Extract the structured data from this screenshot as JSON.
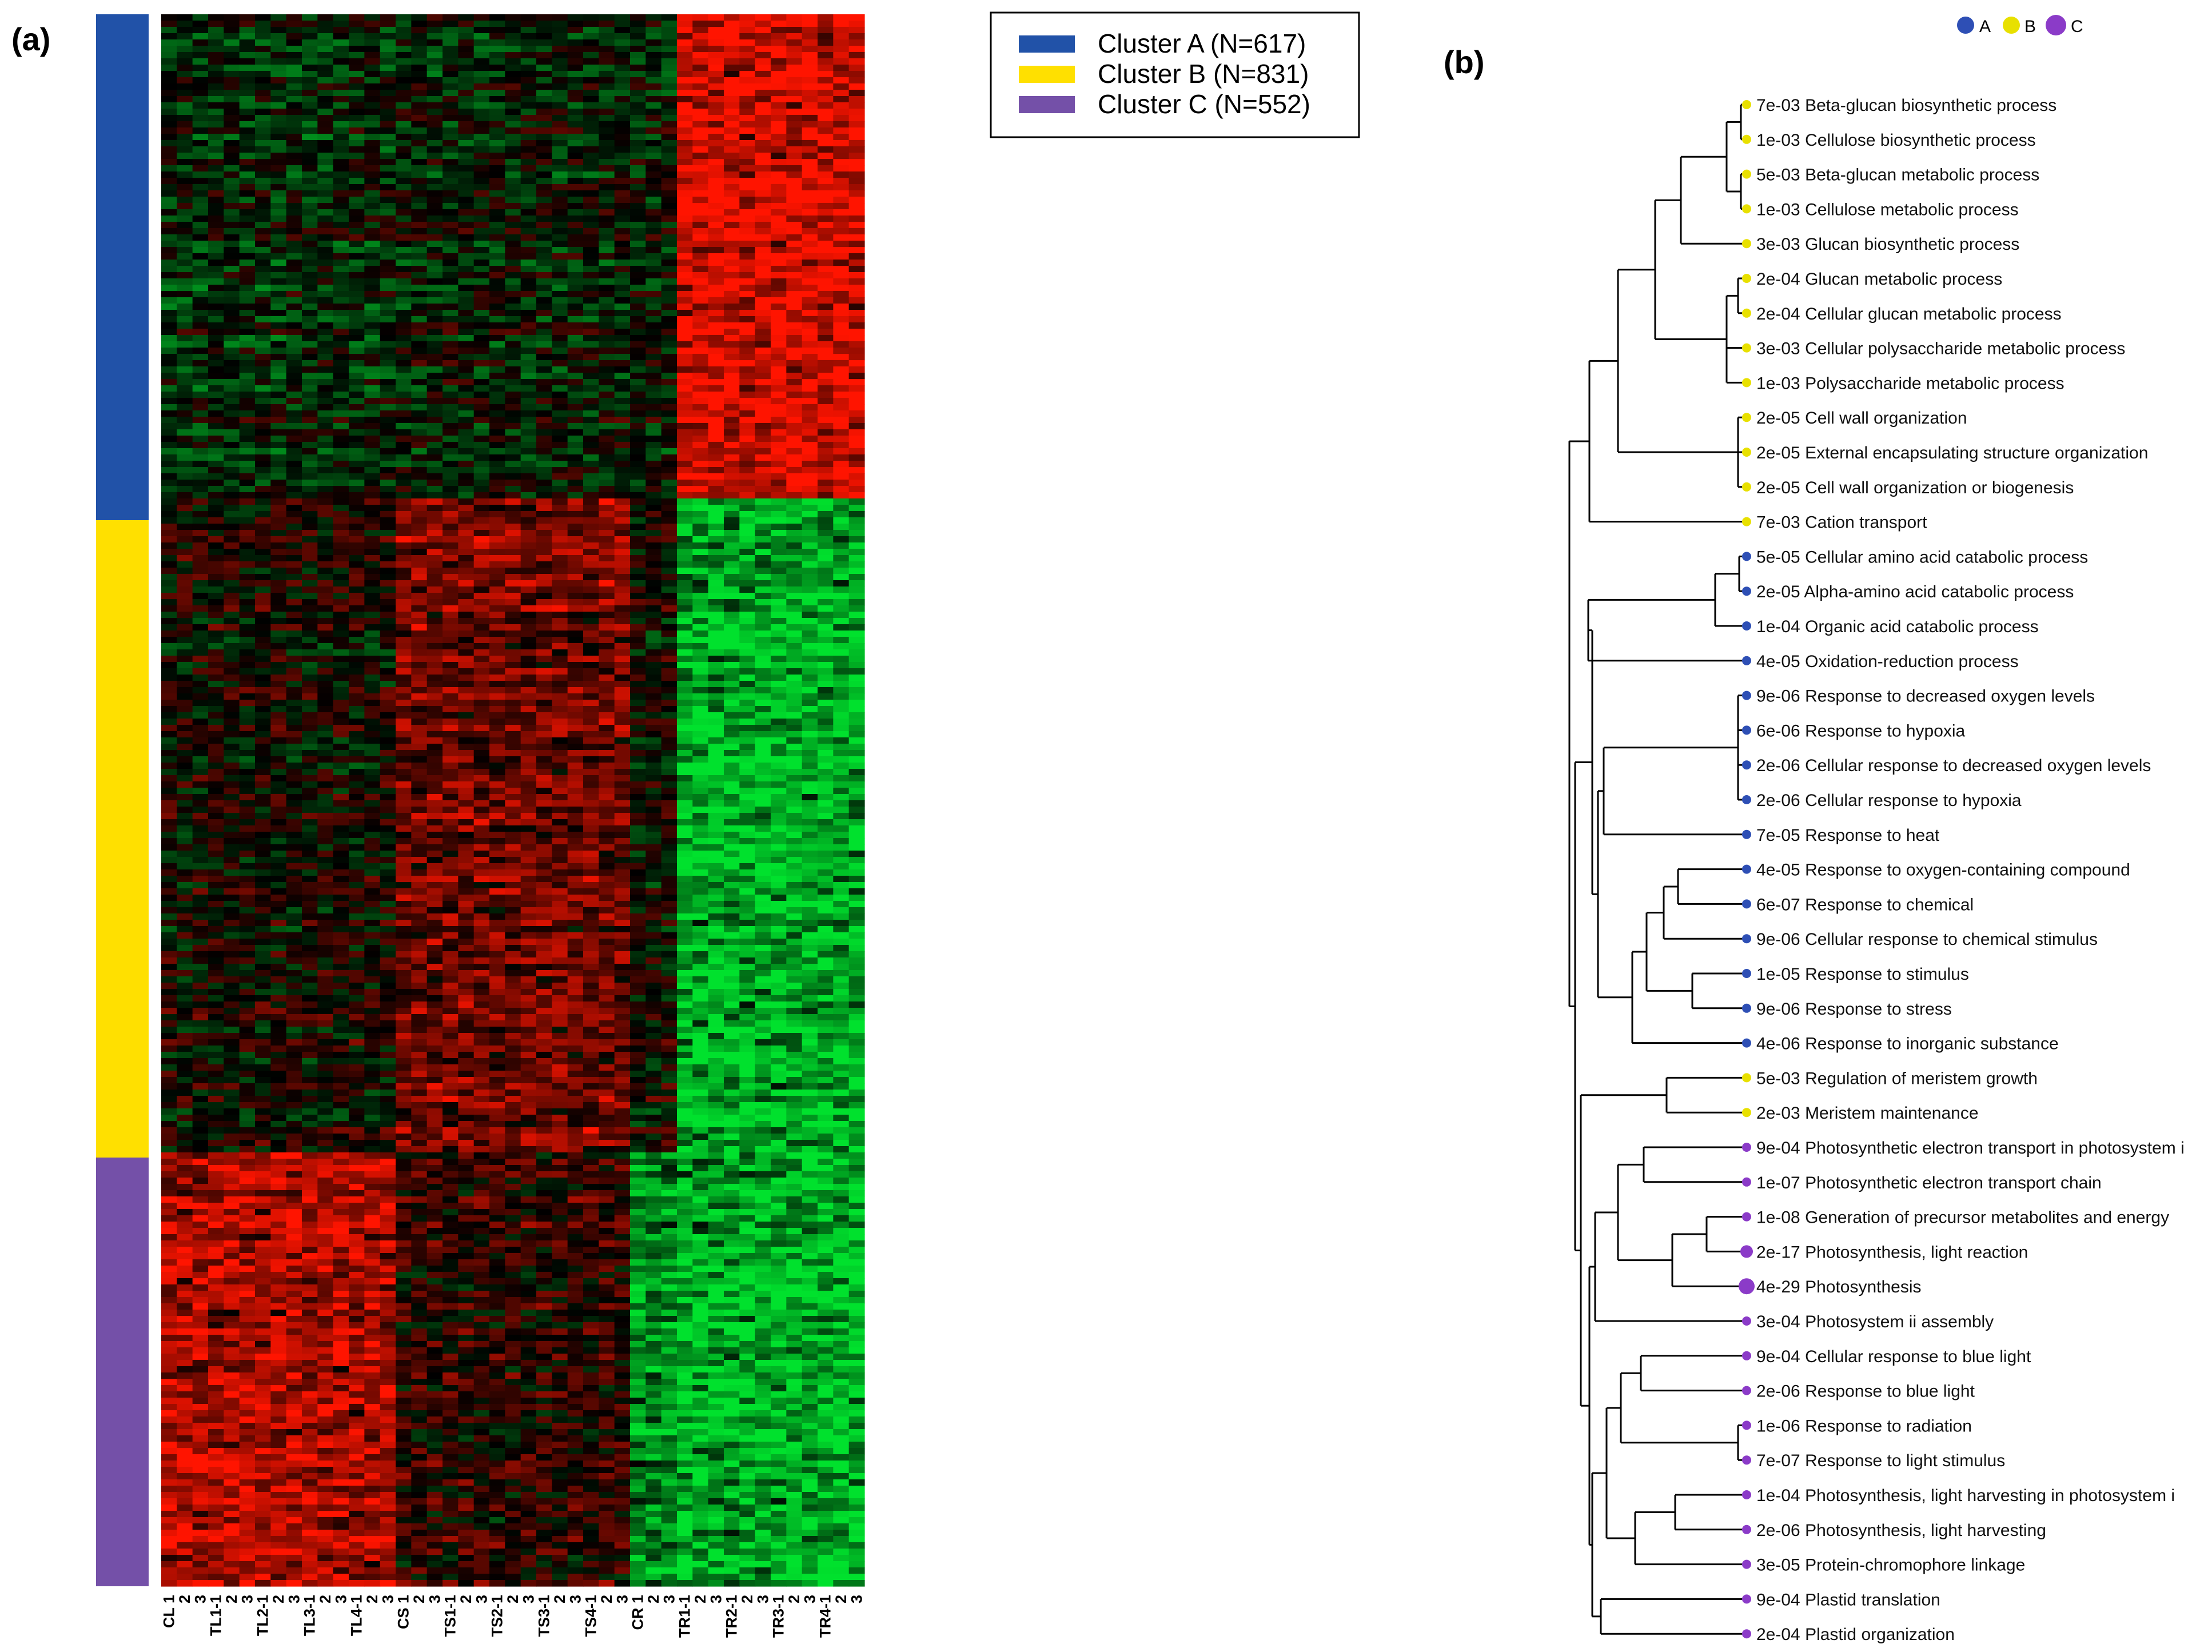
{
  "panels": {
    "a_label": "(a)",
    "b_label": "(b)"
  },
  "legend": {
    "items": [
      {
        "label": "Cluster A (N=617)",
        "color": "#2152a8"
      },
      {
        "label": "Cluster B (N=831)",
        "color": "#ffe000"
      },
      {
        "label": "Cluster C (N=552)",
        "color": "#7450a8"
      }
    ]
  },
  "tree_legend": {
    "items": [
      {
        "label": "A",
        "color": "#2e4fb5"
      },
      {
        "label": "B",
        "color": "#e8e000"
      },
      {
        "label": "C",
        "color": "#8b3bc8"
      }
    ]
  },
  "chart_data": [
    {
      "type": "heatmap",
      "title": "",
      "color_scale": {
        "low": "#00e040",
        "mid": "#000000",
        "high": "#ff0000"
      },
      "clusters": [
        {
          "name": "Cluster A",
          "n": 617,
          "color": "#2152a8"
        },
        {
          "name": "Cluster B",
          "n": 831,
          "color": "#ffe000"
        },
        {
          "name": "Cluster C",
          "n": 552,
          "color": "#7450a8"
        }
      ],
      "groups": [
        {
          "name": "CL",
          "n": 3
        },
        {
          "name": "TL1",
          "n": 3
        },
        {
          "name": "TL2",
          "n": 3
        },
        {
          "name": "TL3",
          "n": 3
        },
        {
          "name": "TL4",
          "n": 3
        },
        {
          "name": "CS",
          "n": 3
        },
        {
          "name": "TS1",
          "n": 3
        },
        {
          "name": "TS2",
          "n": 3
        },
        {
          "name": "TS3",
          "n": 3
        },
        {
          "name": "TS4",
          "n": 3
        },
        {
          "name": "CR",
          "n": 3
        },
        {
          "name": "TR1",
          "n": 3
        },
        {
          "name": "TR2",
          "n": 3
        },
        {
          "name": "TR3",
          "n": 3
        },
        {
          "name": "TR4",
          "n": 3
        }
      ],
      "column_labels": [
        "CL 1",
        "2",
        "3",
        "TL1-1",
        "2",
        "3",
        "TL2-1",
        "2",
        "3",
        "TL3-1",
        "2",
        "3",
        "TL4-1",
        "2",
        "3",
        "CS 1",
        "2",
        "3",
        "TS1-1",
        "2",
        "3",
        "TS2-1",
        "2",
        "3",
        "TS3-1",
        "2",
        "3",
        "TS4-1",
        "2",
        "3",
        "CR 1",
        "2",
        "3",
        "TR1-1",
        "2",
        "3",
        "TR2-1",
        "2",
        "3",
        "TR3-1",
        "2",
        "3",
        "TR4-1",
        "2",
        "3"
      ],
      "cluster_pattern": {
        "Cluster A": {
          "leaf": -0.15,
          "stem": -0.1,
          "root_control": -0.1,
          "root_treated": 1.0
        },
        "Cluster B": {
          "leaf": 0.05,
          "stem": 0.5,
          "root_control": 0.0,
          "root_treated": -0.9
        },
        "Cluster C": {
          "leaf": 0.8,
          "stem": 0.2,
          "root_control": -0.7,
          "root_treated": -0.9
        }
      }
    },
    {
      "type": "dendrogram",
      "title": "",
      "terms": [
        {
          "p": "7e-03",
          "term": "Beta-glucan biosynthetic process",
          "cluster": "B"
        },
        {
          "p": "1e-03",
          "term": "Cellulose biosynthetic process",
          "cluster": "B"
        },
        {
          "p": "5e-03",
          "term": "Beta-glucan metabolic process",
          "cluster": "B"
        },
        {
          "p": "1e-03",
          "term": "Cellulose metabolic process",
          "cluster": "B"
        },
        {
          "p": "3e-03",
          "term": "Glucan biosynthetic process",
          "cluster": "B"
        },
        {
          "p": "2e-04",
          "term": "Glucan metabolic process",
          "cluster": "B"
        },
        {
          "p": "2e-04",
          "term": "Cellular glucan metabolic process",
          "cluster": "B"
        },
        {
          "p": "3e-03",
          "term": "Cellular polysaccharide metabolic process",
          "cluster": "B"
        },
        {
          "p": "1e-03",
          "term": "Polysaccharide metabolic process",
          "cluster": "B"
        },
        {
          "p": "2e-05",
          "term": "Cell wall organization",
          "cluster": "B"
        },
        {
          "p": "2e-05",
          "term": "External encapsulating structure organization",
          "cluster": "B"
        },
        {
          "p": "2e-05",
          "term": "Cell wall organization or biogenesis",
          "cluster": "B"
        },
        {
          "p": "7e-03",
          "term": "Cation transport",
          "cluster": "B"
        },
        {
          "p": "5e-05",
          "term": "Cellular amino acid catabolic process",
          "cluster": "A"
        },
        {
          "p": "2e-05",
          "term": "Alpha-amino acid catabolic process",
          "cluster": "A"
        },
        {
          "p": "1e-04",
          "term": "Organic acid catabolic process",
          "cluster": "A"
        },
        {
          "p": "4e-05",
          "term": "Oxidation-reduction process",
          "cluster": "A"
        },
        {
          "p": "9e-06",
          "term": "Response to decreased oxygen levels",
          "cluster": "A"
        },
        {
          "p": "6e-06",
          "term": "Response to hypoxia",
          "cluster": "A"
        },
        {
          "p": "2e-06",
          "term": "Cellular response to decreased oxygen levels",
          "cluster": "A"
        },
        {
          "p": "2e-06",
          "term": "Cellular response to hypoxia",
          "cluster": "A"
        },
        {
          "p": "7e-05",
          "term": "Response to heat",
          "cluster": "A"
        },
        {
          "p": "4e-05",
          "term": "Response to oxygen-containing compound",
          "cluster": "A"
        },
        {
          "p": "6e-07",
          "term": "Response to chemical",
          "cluster": "A"
        },
        {
          "p": "9e-06",
          "term": "Cellular response to chemical stimulus",
          "cluster": "A"
        },
        {
          "p": "1e-05",
          "term": "Response to stimulus",
          "cluster": "A"
        },
        {
          "p": "9e-06",
          "term": "Response to stress",
          "cluster": "A"
        },
        {
          "p": "4e-06",
          "term": "Response to inorganic substance",
          "cluster": "A"
        },
        {
          "p": "5e-03",
          "term": "Regulation of meristem growth",
          "cluster": "B"
        },
        {
          "p": "2e-03",
          "term": "Meristem maintenance",
          "cluster": "B"
        },
        {
          "p": "9e-04",
          "term": "Photosynthetic electron transport in photosystem i",
          "cluster": "C"
        },
        {
          "p": "1e-07",
          "term": "Photosynthetic electron transport chain",
          "cluster": "C"
        },
        {
          "p": "1e-08",
          "term": "Generation of precursor metabolites and energy",
          "cluster": "C"
        },
        {
          "p": "2e-17",
          "term": "Photosynthesis, light reaction",
          "cluster": "C"
        },
        {
          "p": "4e-29",
          "term": "Photosynthesis",
          "cluster": "C"
        },
        {
          "p": "3e-04",
          "term": "Photosystem ii assembly",
          "cluster": "C"
        },
        {
          "p": "9e-04",
          "term": "Cellular response to blue light",
          "cluster": "C"
        },
        {
          "p": "2e-06",
          "term": "Response to blue light",
          "cluster": "C"
        },
        {
          "p": "1e-06",
          "term": "Response to radiation",
          "cluster": "C"
        },
        {
          "p": "7e-07",
          "term": "Response to light stimulus",
          "cluster": "C"
        },
        {
          "p": "1e-04",
          "term": "Photosynthesis, light harvesting in photosystem i",
          "cluster": "C"
        },
        {
          "p": "2e-06",
          "term": "Photosynthesis, light harvesting",
          "cluster": "C"
        },
        {
          "p": "3e-05",
          "term": "Protein-chromophore linkage",
          "cluster": "C"
        },
        {
          "p": "9e-04",
          "term": "Plastid translation",
          "cluster": "C"
        },
        {
          "p": "2e-04",
          "term": "Plastid organization",
          "cluster": "C"
        }
      ]
    }
  ]
}
